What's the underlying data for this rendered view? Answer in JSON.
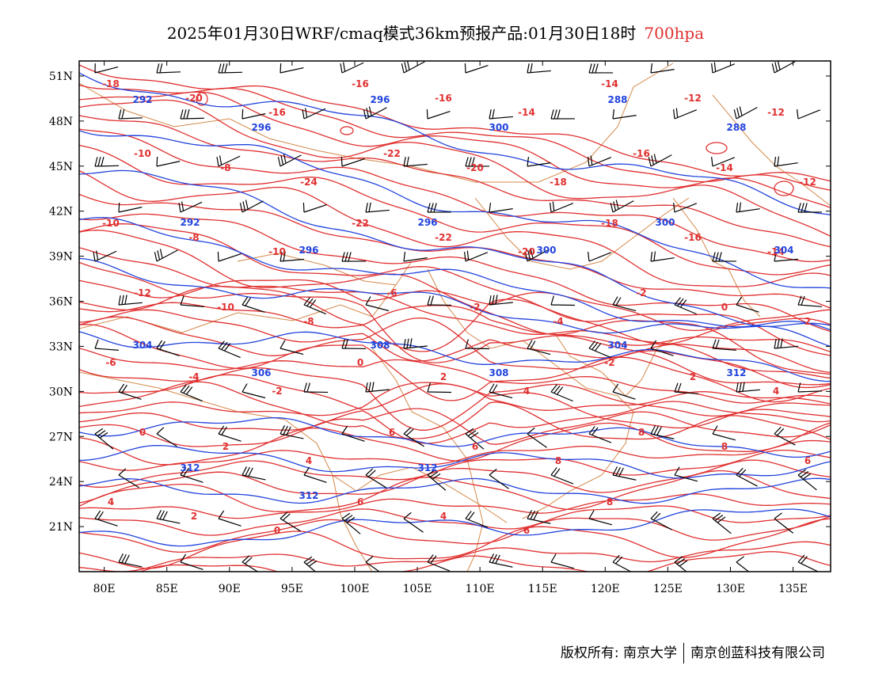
{
  "title": {
    "main": "2025年01月30日WRF/cmaq模式36km预报产品:01月30日18时",
    "level": "700hpa"
  },
  "colors": {
    "temperature": "#e03030",
    "height": "#2244dd",
    "border": "#d4894a",
    "barb": "#000000",
    "frame": "#000000"
  },
  "axes": {
    "x_ticks": [
      "80E",
      "85E",
      "90E",
      "95E",
      "100E",
      "105E",
      "110E",
      "115E",
      "120E",
      "125E",
      "130E",
      "135E"
    ],
    "y_ticks": [
      "51N",
      "48N",
      "45N",
      "42N",
      "39N",
      "36N",
      "33N",
      "30N",
      "27N",
      "24N",
      "21N"
    ],
    "lon_range": [
      78,
      138
    ],
    "lat_range": [
      18,
      52
    ]
  },
  "temperature_labels": [
    "-18",
    "-20",
    "-16",
    "-16",
    "-16",
    "-14",
    "-14",
    "-12",
    "-12",
    "-10",
    "-8",
    "-24",
    "-22",
    "-20",
    "-18",
    "-16",
    "-14",
    "-12",
    "-10",
    "-8",
    "-10",
    "-22",
    "-22",
    "-20",
    "-18",
    "-16",
    "-14",
    "-12",
    "-10",
    "-8",
    "-6",
    "-2",
    "-4",
    "-2",
    "0",
    "2",
    "-6",
    "-4",
    "-2",
    "0",
    "2",
    "4",
    "-2",
    "2",
    "4",
    "0",
    "2",
    "4",
    "6",
    "6",
    "8",
    "8",
    "8",
    "6",
    "4",
    "2",
    "0",
    "6",
    "4",
    "6",
    "8"
  ],
  "height_labels": [
    "292",
    "296",
    "296",
    "300",
    "288",
    "288",
    "292",
    "296",
    "296",
    "300",
    "300",
    "304",
    "304",
    "306",
    "308",
    "308",
    "304",
    "312",
    "312",
    "312",
    "312"
  ],
  "footer": {
    "copyright": "版权所有: 南京大学",
    "company": "南京创蓝科技有限公司"
  }
}
